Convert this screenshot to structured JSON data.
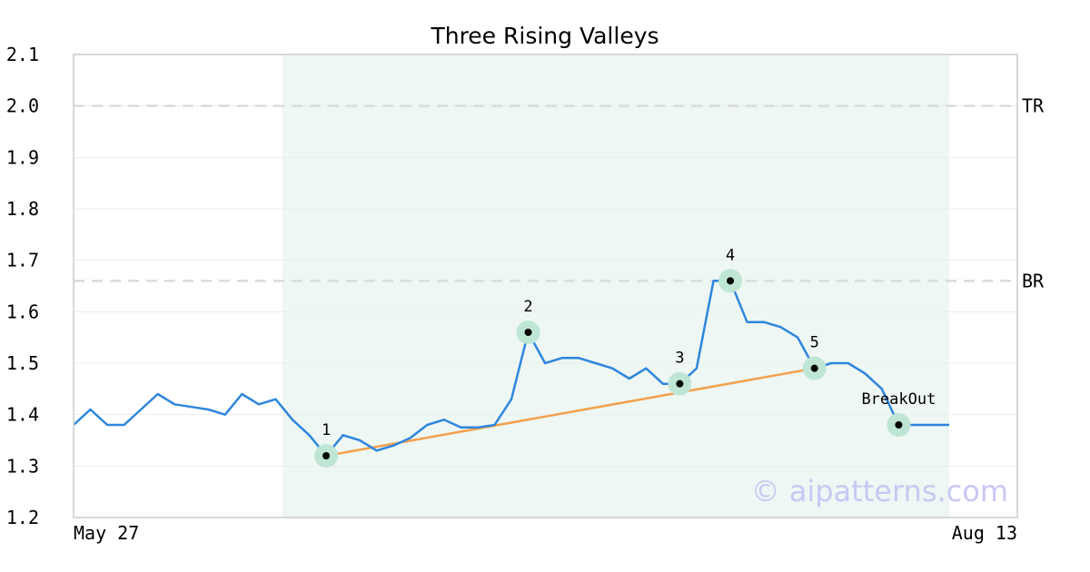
{
  "chart_data": {
    "type": "line",
    "title": "Three Rising Valleys",
    "ylim": [
      1.2,
      2.1
    ],
    "yticks": [
      "2.1",
      "2.0",
      "1.9",
      "1.8",
      "1.7",
      "1.6",
      "1.5",
      "1.4",
      "1.3",
      "1.2"
    ],
    "xtick_labels": [
      "May 27",
      "Aug 13"
    ],
    "grid": true,
    "series": [
      {
        "values": [
          1.38,
          1.41,
          1.38,
          1.38,
          1.41,
          1.44,
          1.42,
          1.415,
          1.41,
          1.4,
          1.44,
          1.42,
          1.43,
          1.39,
          1.36,
          1.32,
          1.36,
          1.35,
          1.33,
          1.34,
          1.355,
          1.38,
          1.39,
          1.375,
          1.375,
          1.38,
          1.43,
          1.56,
          1.5,
          1.51,
          1.51,
          1.5,
          1.49,
          1.47,
          1.49,
          1.46,
          1.46,
          1.49,
          1.66,
          1.66,
          1.58,
          1.58,
          1.57,
          1.55,
          1.49,
          1.5,
          1.5,
          1.48,
          1.45,
          1.38,
          1.38,
          1.38,
          1.38
        ]
      }
    ],
    "pattern_region": {
      "start_index": 13,
      "end_index": 52
    },
    "levels": [
      {
        "label": "TR",
        "value": 2.0
      },
      {
        "label": "BR",
        "value": 1.66
      }
    ],
    "trendline": {
      "from_index": 15,
      "from_value": 1.32,
      "to_index": 44,
      "to_value": 1.49
    },
    "points": [
      {
        "label": "1",
        "index": 15,
        "value": 1.32
      },
      {
        "label": "2",
        "index": 27,
        "value": 1.56
      },
      {
        "label": "3",
        "index": 36,
        "value": 1.46
      },
      {
        "label": "4",
        "index": 39,
        "value": 1.66
      },
      {
        "label": "5",
        "index": 44,
        "value": 1.49
      },
      {
        "label": "BreakOut",
        "index": 49,
        "value": 1.38
      }
    ],
    "watermark": "© aipatterns.com",
    "colors": {
      "line": "#2e86de",
      "trendline": "#f4a04c",
      "region": "#eef7f3",
      "marker_halo": "#bfe6d4",
      "level_line": "#d9dcdf"
    }
  }
}
